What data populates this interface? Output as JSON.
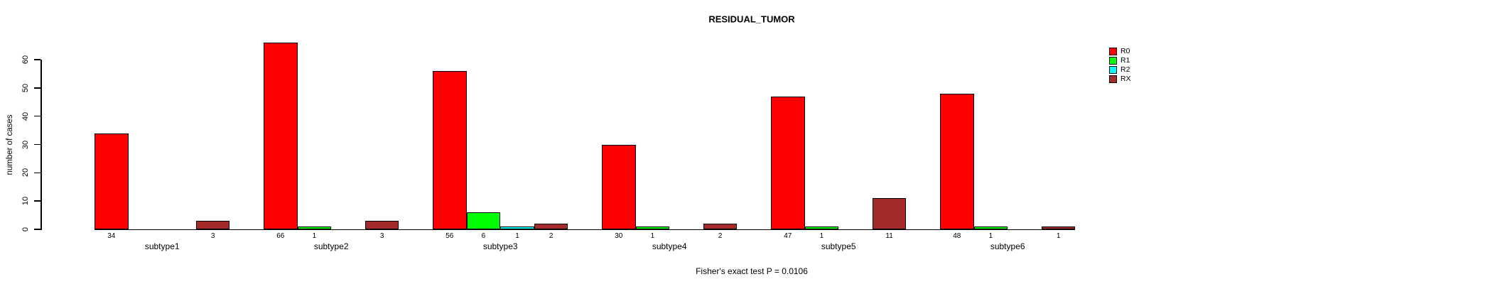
{
  "title": "RESIDUAL_TUMOR",
  "ylabel": "number of cases",
  "caption": "Fisher's exact test P = 0.0106",
  "colors": {
    "R0": "#FF0000",
    "R1": "#00FF00",
    "R2": "#00FFFF",
    "RX": "#A52A2A"
  },
  "legend": {
    "entries": [
      "R0",
      "R1",
      "R2",
      "RX"
    ],
    "position": "right-of-plot"
  },
  "chart_data": {
    "type": "bar",
    "grouped": true,
    "title": "RESIDUAL_TUMOR",
    "xlabel": "",
    "ylabel": "number of cases",
    "categories": [
      "subtype1",
      "subtype2",
      "subtype3",
      "subtype4",
      "subtype5",
      "subtype6"
    ],
    "series": [
      {
        "name": "R0",
        "color": "#FF0000",
        "values": [
          34,
          66,
          56,
          30,
          47,
          48
        ]
      },
      {
        "name": "R1",
        "color": "#00FF00",
        "values": [
          0,
          1,
          6,
          1,
          1,
          1
        ]
      },
      {
        "name": "R2",
        "color": "#00FFFF",
        "values": [
          0,
          0,
          1,
          0,
          0,
          0
        ]
      },
      {
        "name": "RX",
        "color": "#A52A2A",
        "values": [
          3,
          3,
          2,
          2,
          11,
          1
        ]
      }
    ],
    "bar_value_labels_shown": true,
    "zero_value_bars_hidden": true,
    "ylim": [
      0,
      60
    ],
    "yticks": [
      0,
      10,
      20,
      30,
      40,
      50,
      60
    ],
    "grid": false,
    "legend_position": "right",
    "annotation": "Fisher's exact test P = 0.0106"
  }
}
